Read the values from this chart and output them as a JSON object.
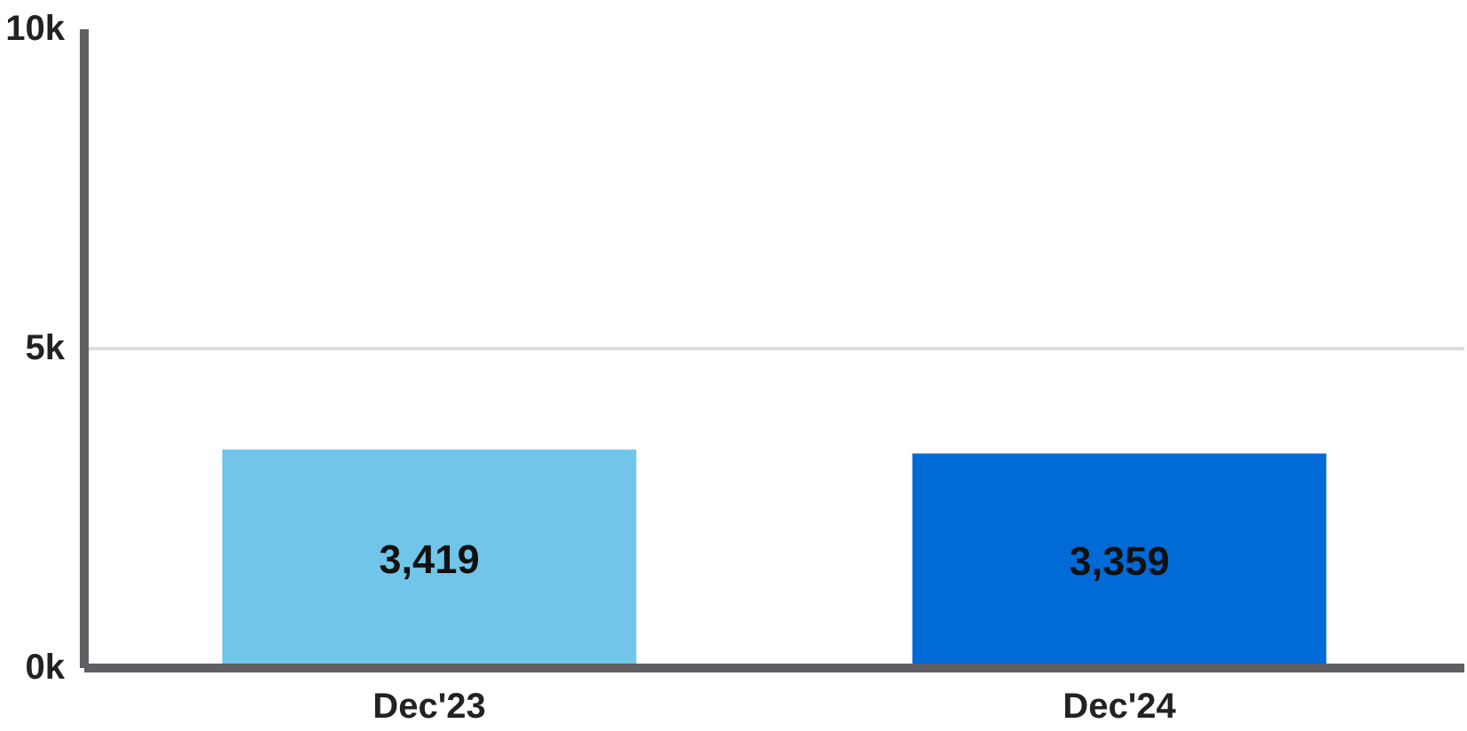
{
  "chart_data": {
    "type": "bar",
    "categories": [
      "Dec'23",
      "Dec'24"
    ],
    "values": [
      3419,
      3359
    ],
    "colors": [
      "#71c5e8",
      "#006bd6"
    ],
    "value_labels": [
      "3,419",
      "3,359"
    ],
    "ylim": [
      0,
      10000
    ],
    "yticks": [
      {
        "value": 0,
        "label": "0k"
      },
      {
        "value": 5000,
        "label": "5k"
      },
      {
        "value": 10000,
        "label": "10k"
      }
    ],
    "grid": "y"
  }
}
